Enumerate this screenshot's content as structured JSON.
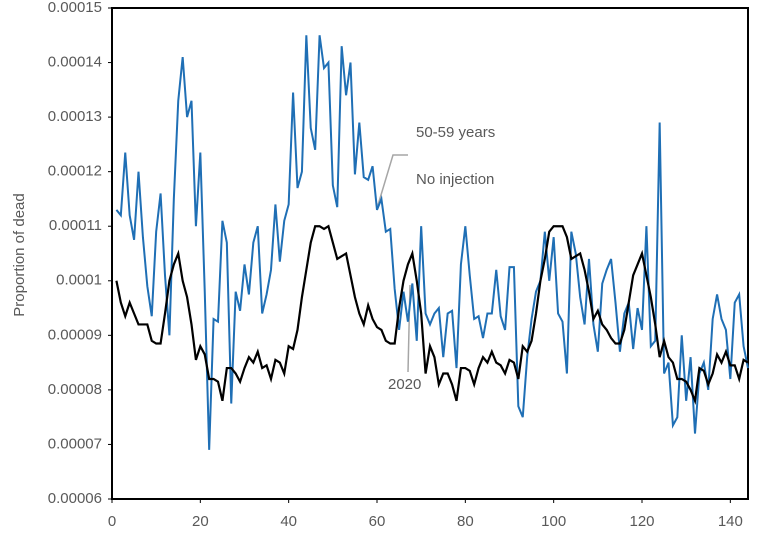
{
  "chart_data": {
    "type": "line",
    "y_label": "Proportion of dead",
    "annotations": [
      "50-59 years",
      "No injection",
      "2020"
    ],
    "xlim": [
      0,
      144
    ],
    "xticks": [
      0,
      20,
      40,
      60,
      80,
      100,
      120,
      140
    ],
    "ylim": [
      6e-05,
      0.00015
    ],
    "yticks": [
      6e-05,
      7e-05,
      8e-05,
      9e-05,
      0.0001,
      0.00011,
      0.00012,
      0.00013,
      0.00014,
      0.00015
    ],
    "grid": false,
    "x": [
      1,
      2,
      3,
      4,
      5,
      6,
      7,
      8,
      9,
      10,
      11,
      12,
      13,
      14,
      15,
      16,
      17,
      18,
      19,
      20,
      21,
      22,
      23,
      24,
      25,
      26,
      27,
      28,
      29,
      30,
      31,
      32,
      33,
      34,
      35,
      36,
      37,
      38,
      39,
      40,
      41,
      42,
      43,
      44,
      45,
      46,
      47,
      48,
      49,
      50,
      51,
      52,
      53,
      54,
      55,
      56,
      57,
      58,
      59,
      60,
      61,
      62,
      63,
      64,
      65,
      66,
      67,
      68,
      69,
      70,
      71,
      72,
      73,
      74,
      75,
      76,
      77,
      78,
      79,
      80,
      81,
      82,
      83,
      84,
      85,
      86,
      87,
      88,
      89,
      90,
      91,
      92,
      93,
      94,
      95,
      96,
      97,
      98,
      99,
      100,
      101,
      102,
      103,
      104,
      105,
      106,
      107,
      108,
      109,
      110,
      111,
      112,
      113,
      114,
      115,
      116,
      117,
      118,
      119,
      120,
      121,
      122,
      123,
      124,
      125,
      126,
      127,
      128,
      129,
      130,
      131,
      132,
      133,
      134,
      135,
      136,
      137,
      138,
      139,
      140,
      141,
      142,
      143,
      144
    ],
    "series": [
      {
        "color": "#1f6fb5",
        "values": [
          0.000113,
          0.000112,
          0.0001235,
          0.000112,
          0.0001075,
          0.00012,
          0.000108,
          9.9e-05,
          9.35e-05,
          0.000109,
          0.000116,
          0.000101,
          9e-05,
          0.000115,
          0.000133,
          0.000141,
          0.00013,
          0.000133,
          0.00011,
          0.0001235,
          9.8e-05,
          6.9e-05,
          9.3e-05,
          9.25e-05,
          0.000111,
          0.000107,
          7.75e-05,
          9.8e-05,
          9.45e-05,
          0.000103,
          9.75e-05,
          0.000107,
          0.00011,
          9.4e-05,
          9.75e-05,
          0.000102,
          0.000114,
          0.0001035,
          0.000111,
          0.000114,
          0.0001345,
          0.000117,
          0.00012,
          0.000145,
          0.000128,
          0.000124,
          0.000145,
          0.000139,
          0.00014,
          0.0001175,
          0.0001135,
          0.000143,
          0.000134,
          0.00014,
          0.0001195,
          0.000129,
          0.000119,
          0.0001185,
          0.000121,
          0.000113,
          0.000115,
          0.000109,
          0.0001095,
          9.85e-05,
          9.1e-05,
          9.8e-05,
          9.25e-05,
          9.95e-05,
          8.9e-05,
          0.00011,
          9.4e-05,
          9.2e-05,
          9.4e-05,
          9.5e-05,
          8.6e-05,
          9.4e-05,
          9.45e-05,
          8.4e-05,
          0.000103,
          0.00011,
          0.000101,
          9.3e-05,
          9.35e-05,
          8.95e-05,
          9.4e-05,
          9.4e-05,
          0.000102,
          9.35e-05,
          9.1e-05,
          0.0001025,
          0.0001025,
          7.7e-05,
          7.5e-05,
          8.6e-05,
          9.3e-05,
          9.8e-05,
          0.0001,
          0.000109,
          0.0001,
          0.000108,
          9.4e-05,
          9.25e-05,
          8.3e-05,
          0.000109,
          0.000105,
          9.7e-05,
          9.2e-05,
          0.000104,
          9.2e-05,
          8.7e-05,
          9.95e-05,
          0.000102,
          0.000104,
          9.6e-05,
          8.7e-05,
          9.4e-05,
          9.6e-05,
          8.75e-05,
          9.5e-05,
          9.1e-05,
          0.00011,
          8.8e-05,
          8.9e-05,
          0.000129,
          8.3e-05,
          8.5e-05,
          7.35e-05,
          7.5e-05,
          9e-05,
          7.8e-05,
          8.6e-05,
          7.2e-05,
          8.3e-05,
          8.5e-05,
          8e-05,
          9.3e-05,
          9.75e-05,
          9.3e-05,
          9.1e-05,
          8.2e-05,
          9.6e-05,
          9.75e-05,
          8.8e-05,
          8.4e-05
        ]
      },
      {
        "color": "#000000",
        "values": [
          0.0001,
          9.6e-05,
          9.35e-05,
          9.6e-05,
          9.4e-05,
          9.2e-05,
          9.2e-05,
          9.2e-05,
          8.9e-05,
          8.85e-05,
          8.85e-05,
          9.4e-05,
          0.0001,
          0.000103,
          0.000105,
          0.0001,
          9.7e-05,
          9.2e-05,
          8.55e-05,
          8.8e-05,
          8.65e-05,
          8.2e-05,
          8.2e-05,
          8.15e-05,
          7.8e-05,
          8.4e-05,
          8.4e-05,
          8.3e-05,
          8.15e-05,
          8.4e-05,
          8.6e-05,
          8.5e-05,
          8.7e-05,
          8.4e-05,
          8.45e-05,
          8.2e-05,
          8.55e-05,
          8.5e-05,
          8.3e-05,
          8.8e-05,
          8.75e-05,
          9.1e-05,
          9.7e-05,
          0.000102,
          0.000107,
          0.00011,
          0.00011,
          0.0001095,
          0.00011,
          0.000107,
          0.000104,
          0.0001045,
          0.000105,
          0.000101,
          9.7e-05,
          9.4e-05,
          9.2e-05,
          9.55e-05,
          9.3e-05,
          9.15e-05,
          9.1e-05,
          8.9e-05,
          8.85e-05,
          8.85e-05,
          9.5e-05,
          0.0001,
          0.000103,
          0.000105,
          0.0001,
          9.4e-05,
          8.3e-05,
          8.8e-05,
          8.6e-05,
          8.1e-05,
          8.3e-05,
          8.3e-05,
          8.1e-05,
          7.8e-05,
          8.4e-05,
          8.4e-05,
          8.35e-05,
          8.1e-05,
          8.4e-05,
          8.6e-05,
          8.5e-05,
          8.7e-05,
          8.5e-05,
          8.45e-05,
          8.3e-05,
          8.55e-05,
          8.5e-05,
          8.2e-05,
          8.8e-05,
          8.7e-05,
          8.9e-05,
          9.4e-05,
          0.0001,
          0.000104,
          0.000109,
          0.00011,
          0.00011,
          0.00011,
          0.000108,
          0.000104,
          0.0001045,
          0.000105,
          0.000102,
          9.8e-05,
          9.3e-05,
          9.45e-05,
          9.2e-05,
          9.1e-05,
          8.95e-05,
          8.85e-05,
          8.85e-05,
          9.1e-05,
          9.6e-05,
          0.000101,
          0.000103,
          0.000105,
          0.000101,
          9.7e-05,
          9.2e-05,
          8.6e-05,
          8.9e-05,
          8.6e-05,
          8.5e-05,
          8.2e-05,
          8.2e-05,
          8.15e-05,
          8e-05,
          7.8e-05,
          8.4e-05,
          8.35e-05,
          8.1e-05,
          8.3e-05,
          8.65e-05,
          8.5e-05,
          8.7e-05,
          8.45e-05,
          8.45e-05,
          8.2e-05,
          8.55e-05,
          8.5e-05
        ]
      }
    ]
  }
}
